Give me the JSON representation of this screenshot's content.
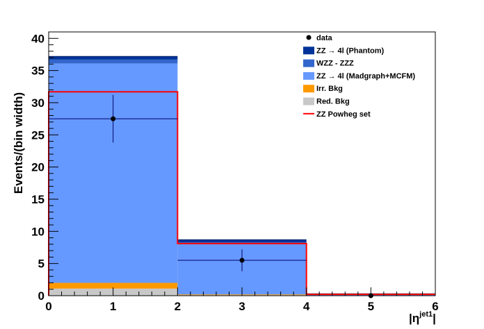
{
  "chart_data": {
    "type": "bar",
    "stacked": true,
    "bin_edges": [
      0,
      2,
      4,
      6
    ],
    "xlim": [
      0,
      6
    ],
    "ylim": [
      0,
      41
    ],
    "x_ticks": [
      0,
      1,
      2,
      3,
      4,
      5,
      6
    ],
    "y_ticks": [
      0,
      5,
      10,
      15,
      20,
      25,
      30,
      35,
      40
    ],
    "ylabel": "Events/(bin width)",
    "xlabel_base": "|η",
    "xlabel_sup": "jet1",
    "xlabel_end": "|",
    "grid": false,
    "legend_position": "top-right",
    "stack_series": [
      {
        "name": "Red. Bkg",
        "color": "#c8c8c8",
        "values": [
          1.1,
          0.1,
          0.0
        ]
      },
      {
        "name": "Irr. Bkg",
        "color": "#ff9900",
        "values": [
          0.9,
          0.1,
          0.0
        ]
      },
      {
        "name": "ZZ → 4l (Madgraph+MCFM)",
        "color": "#6699ff",
        "values": [
          34.1,
          7.8,
          0.25
        ]
      },
      {
        "name": "WZZ - ZZZ",
        "color": "#3366cc",
        "values": [
          0.6,
          0.3,
          0.02
        ]
      },
      {
        "name": "ZZ → 4l (Phantom)",
        "color": "#003399",
        "values": [
          0.5,
          0.4,
          0.03
        ]
      }
    ],
    "line_series": {
      "name": "ZZ Powheg set",
      "color": "#ff0000",
      "values": [
        31.7,
        8.1,
        0.2
      ]
    },
    "data_points": {
      "name": "data",
      "color": "#000000",
      "x": [
        1,
        3,
        5
      ],
      "y": [
        27.5,
        5.5,
        0.0
      ],
      "yerr": [
        3.7,
        1.7,
        0.0
      ],
      "xerr": [
        1,
        1,
        1
      ]
    },
    "legend_order": [
      "data",
      "ZZ → 4l (Phantom)",
      "WZZ - ZZZ",
      "ZZ → 4l (Madgraph+MCFM)",
      "Irr. Bkg",
      "Red. Bkg",
      "ZZ Powheg set"
    ]
  }
}
